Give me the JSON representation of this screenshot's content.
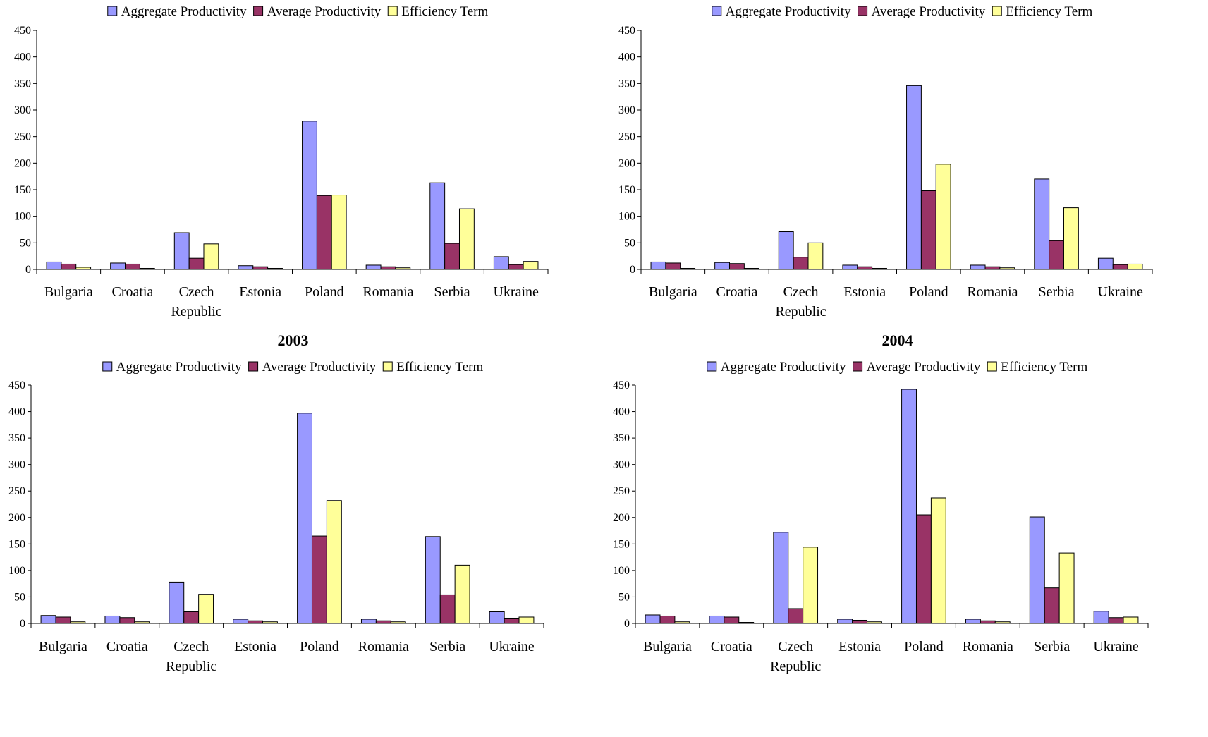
{
  "colors": {
    "aggregate": "#9999ff",
    "average": "#993366",
    "efficiency": "#ffff99",
    "axis": "#000000"
  },
  "chart_data": [
    {
      "type": "bar",
      "title": "",
      "categories": [
        [
          "Bulgaria"
        ],
        [
          "Croatia"
        ],
        [
          "Czech",
          "Republic"
        ],
        [
          "Estonia"
        ],
        [
          "Poland"
        ],
        [
          "Romania"
        ],
        [
          "Serbia"
        ],
        [
          "Ukraine"
        ]
      ],
      "series": [
        {
          "name": "Aggregate Productivity",
          "color": "#9999ff",
          "values": [
            14,
            12,
            69,
            7,
            279,
            8,
            163,
            24
          ]
        },
        {
          "name": "Average Productivity",
          "color": "#993366",
          "values": [
            10,
            10,
            21,
            5,
            139,
            5,
            49,
            9
          ]
        },
        {
          "name": "Efficiency Term",
          "color": "#ffff99",
          "values": [
            4,
            2,
            48,
            2,
            140,
            3,
            114,
            15
          ]
        }
      ],
      "ylim": [
        0,
        450
      ],
      "yticks": [
        0,
        50,
        100,
        150,
        200,
        250,
        300,
        350,
        400,
        450
      ],
      "legend": "top"
    },
    {
      "type": "bar",
      "title": "",
      "categories": [
        [
          "Bulgaria"
        ],
        [
          "Croatia"
        ],
        [
          "Czech",
          "Republic"
        ],
        [
          "Estonia"
        ],
        [
          "Poland"
        ],
        [
          "Romania"
        ],
        [
          "Serbia"
        ],
        [
          "Ukraine"
        ]
      ],
      "series": [
        {
          "name": "Aggregate Productivity",
          "color": "#9999ff",
          "values": [
            14,
            13,
            71,
            8,
            346,
            8,
            170,
            21
          ]
        },
        {
          "name": "Average Productivity",
          "color": "#993366",
          "values": [
            12,
            11,
            23,
            5,
            148,
            5,
            54,
            9
          ]
        },
        {
          "name": "Efficiency Term",
          "color": "#ffff99",
          "values": [
            2,
            2,
            50,
            2,
            198,
            3,
            116,
            10
          ]
        }
      ],
      "ylim": [
        0,
        450
      ],
      "yticks": [
        0,
        50,
        100,
        150,
        200,
        250,
        300,
        350,
        400,
        450
      ],
      "legend": "top"
    },
    {
      "type": "bar",
      "title": "2003",
      "categories": [
        [
          "Bulgaria"
        ],
        [
          "Croatia"
        ],
        [
          "Czech",
          "Republic"
        ],
        [
          "Estonia"
        ],
        [
          "Poland"
        ],
        [
          "Romania"
        ],
        [
          "Serbia"
        ],
        [
          "Ukraine"
        ]
      ],
      "series": [
        {
          "name": "Aggregate Productivity",
          "color": "#9999ff",
          "values": [
            15,
            14,
            78,
            8,
            397,
            8,
            164,
            22
          ]
        },
        {
          "name": "Average Productivity",
          "color": "#993366",
          "values": [
            12,
            11,
            22,
            5,
            165,
            5,
            54,
            10
          ]
        },
        {
          "name": "Efficiency Term",
          "color": "#ffff99",
          "values": [
            3,
            3,
            55,
            3,
            232,
            3,
            110,
            12
          ]
        }
      ],
      "ylim": [
        0,
        450
      ],
      "yticks": [
        0,
        50,
        100,
        150,
        200,
        250,
        300,
        350,
        400,
        450
      ],
      "legend": "top"
    },
    {
      "type": "bar",
      "title": "2004",
      "categories": [
        [
          "Bulgaria"
        ],
        [
          "Croatia"
        ],
        [
          "Czech",
          "Republic"
        ],
        [
          "Estonia"
        ],
        [
          "Poland"
        ],
        [
          "Romania"
        ],
        [
          "Serbia"
        ],
        [
          "Ukraine"
        ]
      ],
      "series": [
        {
          "name": "Aggregate Productivity",
          "color": "#9999ff",
          "values": [
            16,
            14,
            172,
            8,
            442,
            8,
            201,
            23
          ]
        },
        {
          "name": "Average Productivity",
          "color": "#993366",
          "values": [
            14,
            12,
            28,
            6,
            205,
            5,
            67,
            11
          ]
        },
        {
          "name": "Efficiency Term",
          "color": "#ffff99",
          "values": [
            3,
            2,
            144,
            3,
            237,
            3,
            133,
            12
          ]
        }
      ],
      "ylim": [
        0,
        450
      ],
      "yticks": [
        0,
        50,
        100,
        150,
        200,
        250,
        300,
        350,
        400,
        450
      ],
      "legend": "top"
    }
  ]
}
